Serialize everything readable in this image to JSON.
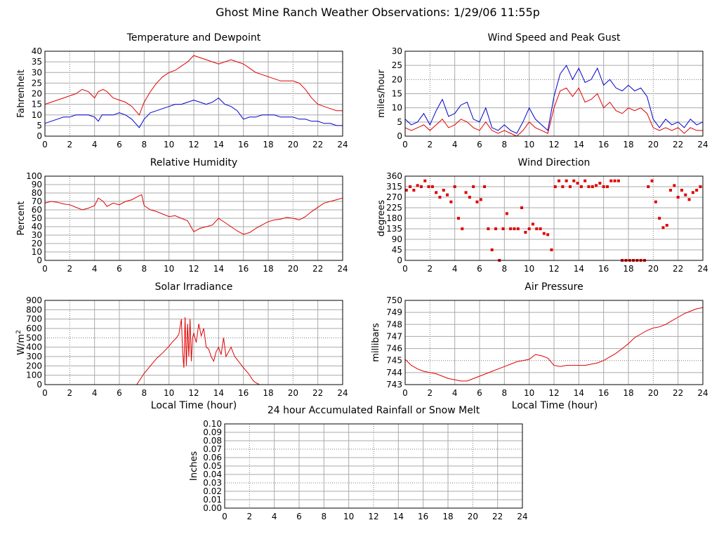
{
  "title": "Ghost Mine Ranch Weather Observations: 1/29/06 11:55p",
  "x_axis_label": "Local Time (hour)",
  "colors": {
    "red": "#e00000",
    "blue": "#0000cc",
    "grid": "#aaaaaa",
    "ref": "#777777"
  },
  "chart_data": [
    {
      "id": "temperature",
      "type": "line",
      "title": "Temperature and Dewpoint",
      "ylabel": "Fahrenheit",
      "xlabel": "",
      "xlim": [
        0,
        24
      ],
      "ylim": [
        0,
        40
      ],
      "xticks": [
        "0",
        "2",
        "4",
        "6",
        "8",
        "10",
        "12",
        "14",
        "16",
        "18",
        "20",
        "22",
        "24"
      ],
      "yticks": [
        "0",
        "5",
        "10",
        "15",
        "20",
        "25",
        "30",
        "35",
        "40"
      ],
      "series": [
        {
          "color": "#e00000",
          "x": [
            0,
            0.5,
            1,
            1.5,
            2,
            2.5,
            3,
            3.5,
            4,
            4.3,
            4.7,
            5,
            5.5,
            6,
            6.5,
            7,
            7.3,
            7.6,
            8,
            8.5,
            9,
            9.5,
            10,
            10.5,
            11,
            11.5,
            12,
            12.5,
            13,
            13.5,
            14,
            14.5,
            15,
            15.5,
            16,
            16.5,
            17,
            17.5,
            18,
            18.5,
            19,
            19.5,
            20,
            20.5,
            21,
            21.5,
            22,
            22.5,
            23,
            23.5,
            24
          ],
          "values": [
            15,
            16,
            17,
            18,
            19,
            20,
            22,
            21,
            18,
            21,
            22,
            21,
            18,
            17,
            16,
            14,
            12,
            10,
            16,
            21,
            25,
            28,
            30,
            31,
            33,
            35,
            38,
            37,
            36,
            35,
            34,
            35,
            36,
            35,
            34,
            32,
            30,
            29,
            28,
            27,
            26,
            26,
            26,
            25,
            22,
            18,
            15,
            14,
            13,
            12,
            12
          ]
        },
        {
          "color": "#0000cc",
          "x": [
            0,
            0.5,
            1,
            1.5,
            2,
            2.5,
            3,
            3.5,
            4,
            4.3,
            4.6,
            5,
            5.5,
            6,
            6.5,
            7,
            7.3,
            7.6,
            8,
            8.5,
            9,
            9.5,
            10,
            10.5,
            11,
            11.5,
            12,
            12.5,
            13,
            13.5,
            14,
            14.5,
            15,
            15.5,
            16,
            16.5,
            17,
            17.5,
            18,
            18.5,
            19,
            19.5,
            20,
            20.5,
            21,
            21.5,
            22,
            22.5,
            23,
            23.5,
            24
          ],
          "values": [
            6,
            7,
            8,
            9,
            9,
            10,
            10,
            10,
            9,
            7,
            10,
            10,
            10,
            11,
            10,
            8,
            6,
            4,
            8,
            11,
            12,
            13,
            14,
            15,
            15,
            16,
            17,
            16,
            15,
            16,
            18,
            15,
            14,
            12,
            8,
            9,
            9,
            10,
            10,
            10,
            9,
            9,
            9,
            8,
            8,
            7,
            7,
            6,
            6,
            5,
            5
          ]
        }
      ]
    },
    {
      "id": "wind",
      "type": "line",
      "title": "Wind Speed and Peak Gust",
      "ylabel": "miles/hour",
      "xlabel": "",
      "xlim": [
        0,
        24
      ],
      "ylim": [
        0,
        30
      ],
      "xticks": [
        "0",
        "2",
        "4",
        "6",
        "8",
        "10",
        "12",
        "14",
        "16",
        "18",
        "20",
        "22",
        "24"
      ],
      "yticks": [
        "0",
        "5",
        "10",
        "15",
        "20",
        "25",
        "30"
      ],
      "series": [
        {
          "color": "#0000cc",
          "x": [
            0,
            0.5,
            1,
            1.5,
            2,
            2.5,
            3,
            3.5,
            4,
            4.5,
            5,
            5.5,
            6,
            6.5,
            7,
            7.5,
            8,
            8.5,
            9,
            9.5,
            10,
            10.5,
            11,
            11.5,
            12,
            12.5,
            13,
            13.5,
            14,
            14.5,
            15,
            15.5,
            16,
            16.5,
            17,
            17.5,
            18,
            18.5,
            19,
            19.5,
            20,
            20.5,
            21,
            21.5,
            22,
            22.5,
            23,
            23.5,
            24
          ],
          "values": [
            6,
            4,
            5,
            8,
            4,
            9,
            13,
            7,
            8,
            11,
            12,
            6,
            5,
            10,
            3,
            2,
            4,
            2,
            1,
            5,
            10,
            6,
            4,
            2,
            14,
            22,
            25,
            20,
            24,
            19,
            20,
            24,
            18,
            20,
            17,
            16,
            18,
            16,
            17,
            14,
            6,
            3,
            6,
            4,
            5,
            3,
            6,
            4,
            5
          ]
        },
        {
          "color": "#e00000",
          "x": [
            0,
            0.5,
            1,
            1.5,
            2,
            2.5,
            3,
            3.5,
            4,
            4.5,
            5,
            5.5,
            6,
            6.5,
            7,
            7.5,
            8,
            8.5,
            9,
            9.5,
            10,
            10.5,
            11,
            11.5,
            12,
            12.5,
            13,
            13.5,
            14,
            14.5,
            15,
            15.5,
            16,
            16.5,
            17,
            17.5,
            18,
            18.5,
            19,
            19.5,
            20,
            20.5,
            21,
            21.5,
            22,
            22.5,
            23,
            23.5,
            24
          ],
          "values": [
            3,
            2,
            3,
            4,
            2,
            4,
            6,
            3,
            4,
            6,
            5,
            3,
            2,
            5,
            2,
            1,
            2,
            1,
            0,
            2,
            5,
            3,
            2,
            1,
            10,
            16,
            17,
            14,
            17,
            12,
            13,
            15,
            10,
            12,
            9,
            8,
            10,
            9,
            10,
            8,
            3,
            2,
            3,
            2,
            3,
            1,
            3,
            2,
            2
          ]
        }
      ]
    },
    {
      "id": "humidity",
      "type": "line",
      "title": "Relative Humidity",
      "ylabel": "Percent",
      "xlabel": "",
      "xlim": [
        0,
        24
      ],
      "ylim": [
        0,
        100
      ],
      "xticks": [
        "0",
        "2",
        "4",
        "6",
        "8",
        "10",
        "12",
        "14",
        "16",
        "18",
        "20",
        "22",
        "24"
      ],
      "yticks": [
        "0",
        "10",
        "20",
        "30",
        "40",
        "50",
        "60",
        "70",
        "80",
        "90",
        "100"
      ],
      "series": [
        {
          "color": "#e00000",
          "x": [
            0,
            0.5,
            1,
            1.5,
            2,
            2.5,
            3,
            3.5,
            4,
            4.3,
            4.7,
            5,
            5.5,
            6,
            6.5,
            7,
            7.5,
            7.8,
            8,
            8.5,
            9,
            9.5,
            10,
            10.5,
            11,
            11.5,
            12,
            12.5,
            13,
            13.5,
            14,
            14.5,
            15,
            15.5,
            16,
            16.5,
            17,
            17.5,
            18,
            18.5,
            19,
            19.5,
            20,
            20.5,
            21,
            21.5,
            22,
            22.5,
            23,
            23.5,
            24
          ],
          "values": [
            68,
            70,
            69,
            67,
            66,
            63,
            60,
            62,
            65,
            74,
            70,
            64,
            68,
            66,
            70,
            72,
            76,
            78,
            65,
            60,
            58,
            55,
            52,
            53,
            50,
            47,
            34,
            38,
            40,
            42,
            50,
            45,
            40,
            35,
            31,
            33,
            38,
            42,
            46,
            48,
            49,
            51,
            50,
            48,
            52,
            58,
            63,
            68,
            70,
            72,
            74
          ]
        }
      ]
    },
    {
      "id": "direction",
      "type": "scatter",
      "title": "Wind Direction",
      "ylabel": "degrees",
      "xlabel": "",
      "xlim": [
        0,
        24
      ],
      "ylim": [
        0,
        360
      ],
      "xticks": [
        "0",
        "2",
        "4",
        "6",
        "8",
        "10",
        "12",
        "14",
        "16",
        "18",
        "20",
        "22",
        "24"
      ],
      "yticks": [
        "0",
        "45",
        "90",
        "135",
        "180",
        "225",
        "270",
        "315",
        "360"
      ],
      "series": [
        {
          "color": "#e00000",
          "x": [
            0.1,
            0.4,
            0.7,
            1.0,
            1.3,
            1.6,
            1.9,
            2.2,
            2.5,
            2.8,
            3.1,
            3.4,
            3.7,
            4.0,
            4.3,
            4.6,
            4.9,
            5.2,
            5.5,
            5.8,
            6.1,
            6.4,
            6.7,
            7.0,
            7.3,
            7.6,
            7.9,
            8.2,
            8.5,
            8.8,
            9.1,
            9.4,
            9.7,
            10.0,
            10.3,
            10.6,
            10.9,
            11.2,
            11.5,
            11.8,
            12.1,
            12.4,
            12.7,
            13.0,
            13.3,
            13.6,
            13.9,
            14.2,
            14.5,
            14.8,
            15.1,
            15.4,
            15.7,
            16.0,
            16.3,
            16.6,
            16.9,
            17.2,
            17.5,
            17.8,
            18.1,
            18.4,
            18.7,
            19.0,
            19.3,
            19.6,
            19.9,
            20.2,
            20.5,
            20.8,
            21.1,
            21.4,
            21.7,
            22.0,
            22.3,
            22.6,
            22.9,
            23.2,
            23.5,
            23.8
          ],
          "values": [
            300,
            315,
            300,
            320,
            315,
            340,
            315,
            315,
            290,
            270,
            300,
            280,
            250,
            315,
            180,
            135,
            290,
            270,
            315,
            250,
            260,
            315,
            135,
            45,
            135,
            0,
            135,
            200,
            135,
            135,
            135,
            225,
            120,
            135,
            155,
            135,
            135,
            115,
            110,
            45,
            315,
            340,
            315,
            340,
            315,
            340,
            330,
            315,
            340,
            315,
            315,
            320,
            330,
            315,
            315,
            340,
            340,
            340,
            0,
            0,
            0,
            0,
            0,
            0,
            0,
            315,
            340,
            250,
            180,
            140,
            150,
            300,
            320,
            270,
            300,
            280,
            260,
            290,
            300,
            315
          ]
        }
      ]
    },
    {
      "id": "solar",
      "type": "line",
      "title": "Solar Irradiance",
      "ylabel": "W/m",
      "ylabel_sup": "2",
      "xlabel": "Local Time (hour)",
      "xlim": [
        0,
        24
      ],
      "ylim": [
        0,
        900
      ],
      "xticks": [
        "0",
        "2",
        "4",
        "6",
        "8",
        "10",
        "12",
        "14",
        "16",
        "18",
        "20",
        "22",
        "24"
      ],
      "yticks": [
        "0",
        "100",
        "200",
        "300",
        "400",
        "500",
        "600",
        "700",
        "800",
        "900"
      ],
      "series": [
        {
          "color": "#e00000",
          "x": [
            0,
            7.4,
            7.7,
            8.0,
            8.5,
            9.0,
            9.5,
            10.0,
            10.3,
            10.6,
            10.8,
            11.0,
            11.1,
            11.2,
            11.3,
            11.4,
            11.5,
            11.6,
            11.7,
            11.8,
            11.9,
            12.0,
            12.2,
            12.4,
            12.6,
            12.8,
            13.0,
            13.2,
            13.4,
            13.6,
            13.8,
            14.0,
            14.2,
            14.4,
            14.6,
            14.8,
            15.0,
            15.3,
            15.6,
            16.0,
            16.4,
            16.8,
            17.0,
            17.3,
            24
          ],
          "values": [
            0,
            0,
            60,
            120,
            200,
            280,
            340,
            410,
            460,
            500,
            540,
            700,
            350,
            180,
            720,
            200,
            650,
            300,
            700,
            250,
            500,
            550,
            450,
            650,
            520,
            600,
            400,
            380,
            300,
            250,
            350,
            400,
            320,
            500,
            300,
            350,
            400,
            300,
            250,
            180,
            120,
            40,
            20,
            0,
            0
          ]
        }
      ]
    },
    {
      "id": "pressure",
      "type": "line",
      "title": "Air Pressure",
      "ylabel": "millibars",
      "xlabel": "Local Time (hour)",
      "xlim": [
        0,
        24
      ],
      "ylim": [
        743,
        750
      ],
      "xticks": [
        "0",
        "2",
        "4",
        "6",
        "8",
        "10",
        "12",
        "14",
        "16",
        "18",
        "20",
        "22",
        "24"
      ],
      "yticks": [
        "743",
        "744",
        "745",
        "746",
        "747",
        "748",
        "749",
        "750"
      ],
      "series": [
        {
          "color": "#e00000",
          "x": [
            0,
            0.5,
            1,
            1.5,
            2,
            2.5,
            3,
            3.5,
            4,
            4.5,
            5,
            5.5,
            6,
            6.5,
            7,
            7.5,
            8,
            8.5,
            9,
            9.5,
            10,
            10.5,
            11,
            11.5,
            12,
            12.5,
            13,
            13.5,
            14,
            14.5,
            15,
            15.5,
            16,
            16.5,
            17,
            17.5,
            18,
            18.5,
            19,
            19.5,
            20,
            20.5,
            21,
            21.5,
            22,
            22.5,
            23,
            23.5,
            24
          ],
          "values": [
            745.1,
            744.6,
            744.3,
            744.1,
            744,
            743.9,
            743.7,
            743.5,
            743.4,
            743.3,
            743.3,
            743.5,
            743.7,
            743.9,
            744.1,
            744.3,
            744.5,
            744.7,
            744.9,
            745,
            745.1,
            745.5,
            745.4,
            745.2,
            744.6,
            744.5,
            744.6,
            744.6,
            744.6,
            744.6,
            744.7,
            744.8,
            745,
            745.3,
            745.6,
            746,
            746.4,
            746.9,
            747.2,
            747.5,
            747.7,
            747.8,
            748,
            748.3,
            748.6,
            748.9,
            749.1,
            749.3,
            749.4
          ]
        }
      ]
    },
    {
      "id": "rain",
      "type": "line",
      "title": "24 hour Accumulated Rainfall or Snow Melt",
      "ylabel": "Inches",
      "xlabel": "",
      "xlim": [
        0,
        24
      ],
      "ylim": [
        0,
        0.1
      ],
      "xticks": [
        "0",
        "2",
        "4",
        "6",
        "8",
        "10",
        "12",
        "14",
        "16",
        "18",
        "20",
        "22",
        "24"
      ],
      "yticks": [
        "0.00",
        "0.01",
        "0.02",
        "0.03",
        "0.04",
        "0.05",
        "0.06",
        "0.07",
        "0.08",
        "0.09",
        "0.10"
      ],
      "series": [
        {
          "color": "#e00000",
          "x": [
            0,
            24
          ],
          "values": [
            0,
            0
          ]
        }
      ]
    }
  ]
}
